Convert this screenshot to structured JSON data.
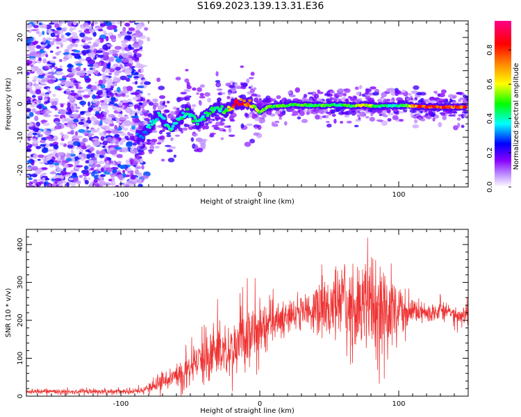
{
  "page": {
    "title": "S169.2023.139.13.31.E36"
  },
  "chart_data": [
    {
      "type": "heatmap",
      "xlabel": "Height of straight line (km)",
      "ylabel": "Frequency (Hz)",
      "xlim": [
        -168,
        150
      ],
      "ylim": [
        -25,
        25
      ],
      "xticks": [
        -100,
        0,
        100
      ],
      "yticks": [
        -20,
        -10,
        0,
        10,
        20
      ],
      "colorbar": {
        "label": "Normalized spectral amplitude",
        "range": [
          0,
          0.97
        ],
        "ticks": [
          0.0,
          0.2,
          0.4,
          0.6,
          0.8
        ],
        "colormap": [
          "#ffffff",
          "#8800ff",
          "#0000ff",
          "#00ffff",
          "#00ff00",
          "#ffff00",
          "#ff8800",
          "#ff0000",
          "#ff0088"
        ]
      },
      "ridge": {
        "x": [
          -85,
          -78,
          -72,
          -65,
          -58,
          -52,
          -45,
          -38,
          -30,
          -24,
          -18,
          -12,
          -6,
          0,
          6,
          15,
          25,
          35,
          45,
          55,
          65,
          75,
          85,
          95,
          105,
          115,
          125,
          135,
          148
        ],
        "frequency": [
          -10,
          -6,
          -3,
          -8,
          -5,
          -2,
          -6,
          -3,
          -1,
          -2,
          0.2,
          0.4,
          0.1,
          -2.5,
          -0.8,
          -0.6,
          -0.2,
          -0.4,
          -0.5,
          -0.3,
          -0.6,
          -0.4,
          -0.7,
          -0.6,
          -0.5,
          -0.8,
          -0.9,
          -0.9,
          -1.0
        ],
        "amplitude": [
          0.35,
          0.45,
          0.4,
          0.5,
          0.45,
          0.5,
          0.45,
          0.5,
          0.45,
          0.55,
          0.9,
          0.95,
          0.7,
          0.6,
          0.6,
          0.55,
          0.6,
          0.5,
          0.55,
          0.5,
          0.55,
          0.75,
          0.5,
          0.45,
          0.55,
          0.9,
          0.95,
          0.92,
          0.9
        ]
      }
    },
    {
      "type": "line",
      "xlabel": "Height of straight line (km)",
      "ylabel": "SNR (10 * v/v)",
      "xlim": [
        -168,
        150
      ],
      "ylim": [
        0,
        440
      ],
      "xticks": [
        -100,
        0,
        100
      ],
      "yticks": [
        0,
        100,
        200,
        300,
        400
      ],
      "color": "#ee3333",
      "envelope": {
        "x": [
          -168,
          -120,
          -90,
          -80,
          -70,
          -60,
          -50,
          -40,
          -30,
          -20,
          -10,
          0,
          10,
          20,
          30,
          40,
          50,
          60,
          70,
          80,
          90,
          100,
          110,
          120,
          130,
          140,
          150
        ],
        "mean": [
          12,
          12,
          12,
          20,
          40,
          55,
          70,
          90,
          115,
          135,
          160,
          180,
          195,
          210,
          225,
          225,
          230,
          240,
          240,
          245,
          245,
          235,
          225,
          220,
          220,
          215,
          210
        ],
        "spread": [
          6,
          6,
          7,
          12,
          22,
          30,
          40,
          55,
          65,
          75,
          70,
          55,
          40,
          35,
          40,
          60,
          80,
          110,
          100,
          115,
          115,
          60,
          30,
          25,
          22,
          22,
          25
        ]
      }
    }
  ]
}
